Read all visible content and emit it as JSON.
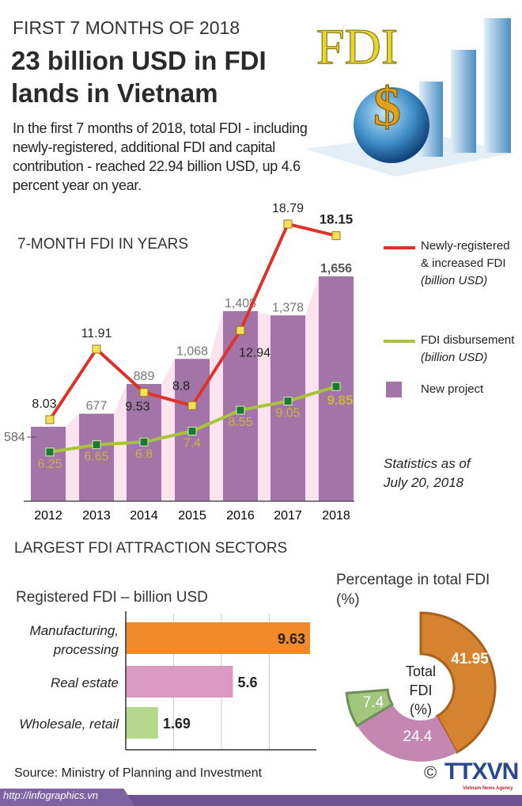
{
  "header": {
    "kicker": "FIRST 7 MONTHS OF 2018",
    "headline_line1": "23 billion USD in FDI",
    "headline_line2": "lands in Vietnam",
    "lead": "In the first 7 months of 2018, total FDI - including newly-registered, additional FDI and capital contribution - reached 22.94 billion USD, up 4.6 percent year on year.",
    "illustration_text": "FDI",
    "illustration_symbol": "$"
  },
  "chart_data": [
    {
      "type": "bar+line",
      "title": "7-MONTH FDI IN YEARS",
      "categories": [
        "2012",
        "2013",
        "2014",
        "2015",
        "2016",
        "2017",
        "2018"
      ],
      "series": [
        {
          "name": "New project",
          "type": "bar",
          "color": "#a274a8",
          "values": [
            584,
            677,
            889,
            1068,
            1408,
            1378,
            1656
          ],
          "labels": [
            "584",
            "677",
            "889",
            "1,068",
            "1,408",
            "1,378",
            "1,656"
          ]
        },
        {
          "name": "Newly-registered & increased FDI",
          "unit": "(billion USD)",
          "type": "line",
          "color": "#e0312a",
          "values": [
            8.03,
            11.91,
            9.53,
            8.8,
            12.94,
            18.79,
            18.15
          ]
        },
        {
          "name": "FDI disbursement",
          "unit": "(billion USD)",
          "type": "line",
          "color": "#a8c43a",
          "values": [
            6.25,
            6.65,
            6.8,
            7.4,
            8.55,
            9.05,
            9.85
          ]
        }
      ],
      "note_line1": "Statistics as of",
      "note_line2": "July 20, 2018",
      "grid": false,
      "legend": "right"
    },
    {
      "type": "bar",
      "orientation": "horizontal",
      "title": "Registered FDI – billion USD",
      "categories": [
        "Manufacturing, processing",
        "Real estate",
        "Wholesale, retail"
      ],
      "category_lines": [
        [
          "Manufacturing,",
          "processing"
        ],
        [
          "Real estate"
        ],
        [
          "Wholesale, retail"
        ]
      ],
      "values": [
        9.63,
        5.6,
        1.69
      ],
      "colors": [
        "#f08a2a",
        "#dc99c2",
        "#b5d88f"
      ],
      "xlim": [
        0,
        10
      ],
      "grid": true
    },
    {
      "type": "pie",
      "title": "Percentage in total FDI",
      "title_unit": "(%)",
      "center_label": [
        "Total",
        "FDI",
        "(%)"
      ],
      "categories": [
        "Manufacturing, processing",
        "Real estate",
        "Wholesale, retail"
      ],
      "values": [
        41.95,
        24.4,
        7.4
      ],
      "colors": [
        "#d6832f",
        "#c487b2",
        "#a2c67e"
      ]
    }
  ],
  "sectors_heading": "LARGEST FDI ATTRACTION SECTORS",
  "footer": {
    "source": "Source: Ministry of Planning and Investment",
    "url": "http://infographics.vn",
    "copyright": "©",
    "logo_text": "TTXVN",
    "logo_subtext": "Vietnam News Agency"
  }
}
